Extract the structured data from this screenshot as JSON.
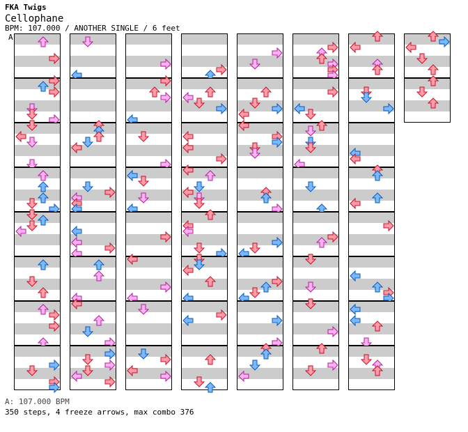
{
  "header": {
    "artist": "FKA Twigs",
    "title": "Cellophane",
    "meta": "BPM: 107.000 / ANOTHER SINGLE / 6 feet"
  },
  "bpm_marker": "A",
  "footer": {
    "bpm": "A: 107.000 BPM",
    "stats": "350 steps, 4 freeze arrows, max combo 376"
  },
  "chart": {
    "columns": 8,
    "measures_per_column": 8,
    "lanes": [
      "left",
      "down",
      "up",
      "right"
    ],
    "last_column_measures": 2,
    "colors": {
      "quarter_fill": "#ff9aa6",
      "quarter_stroke": "#c0142a",
      "eighth_fill": "#7ab8ff",
      "eighth_stroke": "#0a5ab8",
      "sixteenth_fill": "#ffb0f0",
      "sixteenth_stroke": "#b020a0",
      "special_fill": "#ffff40",
      "special_stroke": "#a0a000",
      "freeze_fill": "#b8f0b0",
      "freeze_stroke": "#2a9a2a",
      "stripe": "#cccccc",
      "border": "#000000"
    }
  }
}
